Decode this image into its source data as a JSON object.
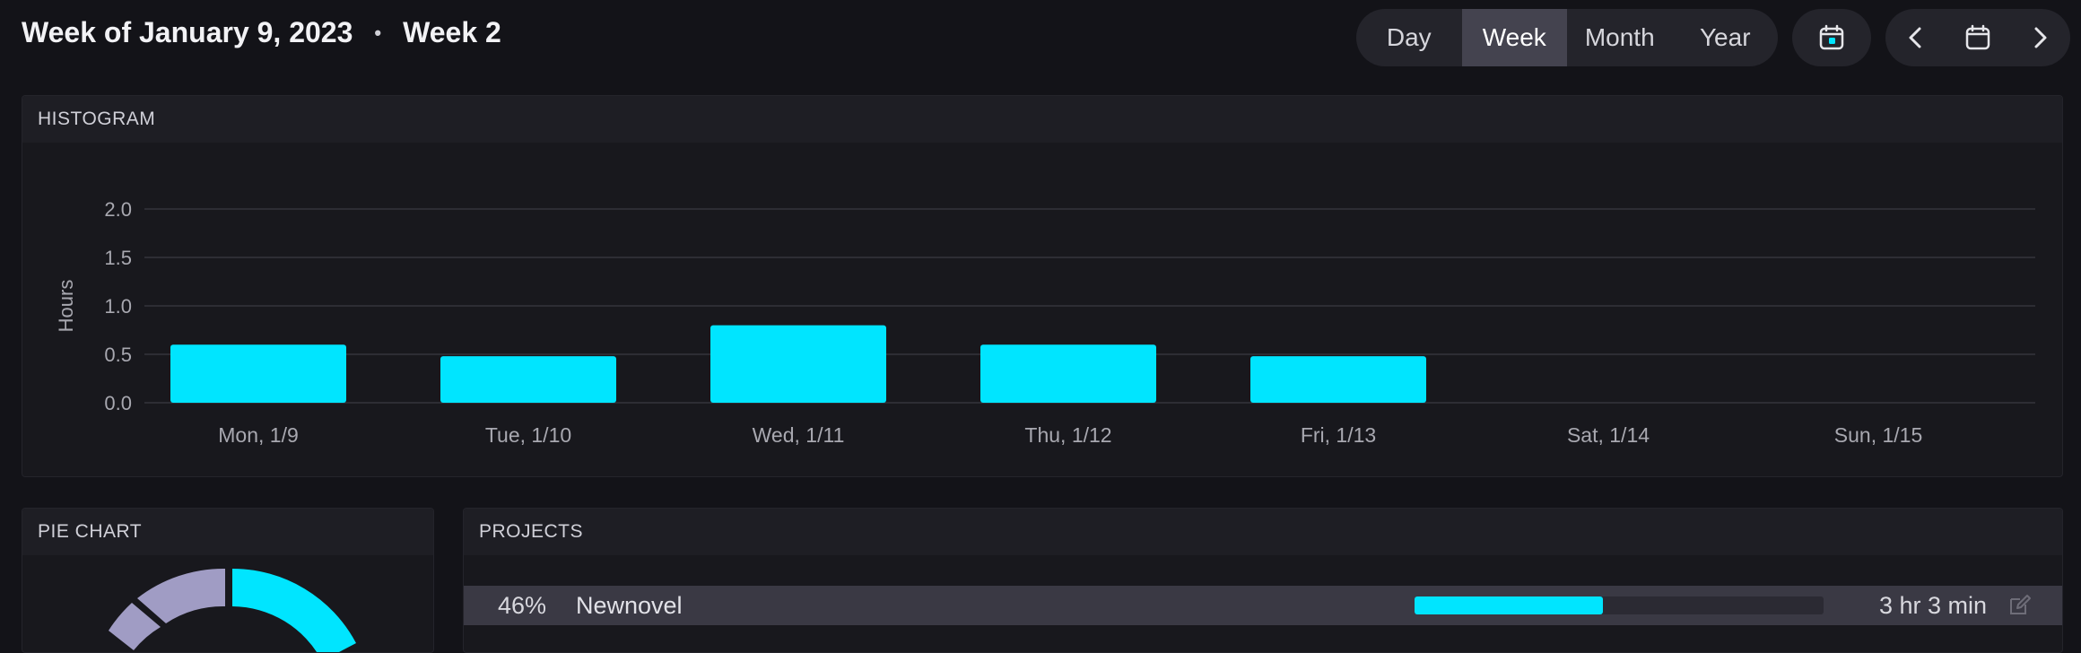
{
  "header": {
    "week_title": "Week of January 9, 2023",
    "separator": "•",
    "week_number": "Week 2"
  },
  "range_selector": {
    "options": [
      "Day",
      "Week",
      "Month",
      "Year"
    ],
    "selected": "Week"
  },
  "controls": {
    "today_icon": "calendar-today-icon",
    "prev_icon": "chevron-left-icon",
    "picker_icon": "calendar-icon",
    "next_icon": "chevron-right-icon"
  },
  "histogram": {
    "heading": "HISTOGRAM"
  },
  "chart_data": {
    "type": "bar",
    "title": "",
    "xlabel": "",
    "ylabel": "Hours",
    "categories": [
      "Mon, 1/9",
      "Tue, 1/10",
      "Wed, 1/11",
      "Thu, 1/12",
      "Fri, 1/13",
      "Sat, 1/14",
      "Sun, 1/15"
    ],
    "values": [
      0.6,
      0.48,
      0.8,
      0.6,
      0.48,
      0,
      0
    ],
    "ylim": [
      0,
      2.0
    ],
    "yticks": [
      "0.0",
      "0.5",
      "1.0",
      "1.5",
      "2.0"
    ],
    "grid": true,
    "bar_color": "#00e5ff"
  },
  "pie_chart": {
    "heading": "PIE CHART",
    "segment_colors": [
      "#00e5ff",
      "#a09cc4",
      "#a09cc4"
    ]
  },
  "projects": {
    "heading": "PROJECTS",
    "rows": [
      {
        "percent": "46%",
        "name": "Newnovel",
        "fraction": 0.46,
        "time": "3 hr 3 min",
        "edit_icon": "edit-icon"
      }
    ]
  },
  "colors": {
    "accent": "#00e5ff",
    "background": "#131318",
    "card": "#18181d",
    "row_highlight": "#3a3944"
  }
}
